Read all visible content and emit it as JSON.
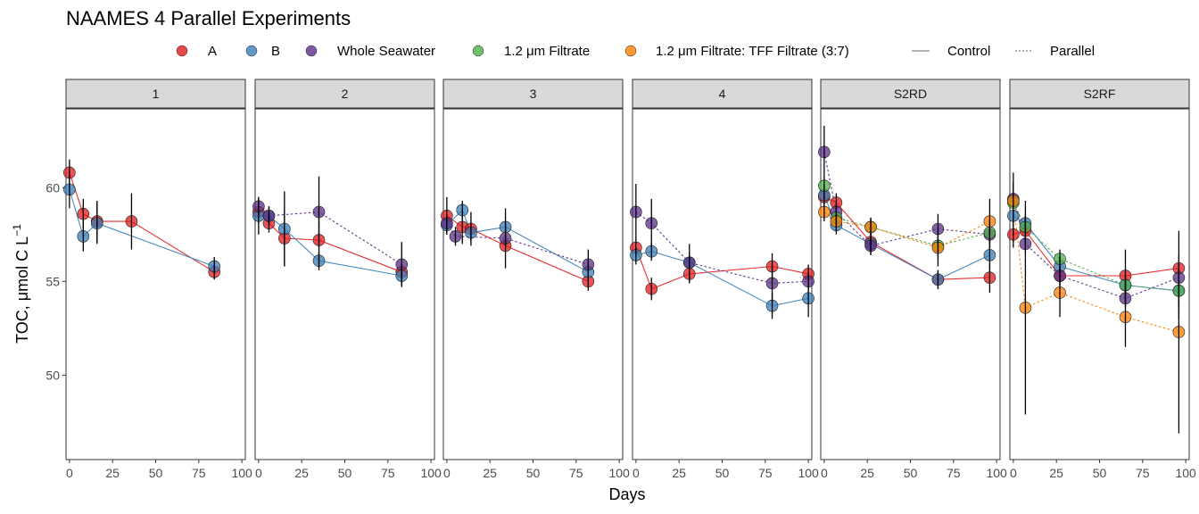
{
  "chart_data": {
    "type": "line",
    "title": "NAAMES 4 Parallel Experiments",
    "xlabel": "Days",
    "ylabel_main": "TOC, μmol C L",
    "ylabel_sup": "−1",
    "xlim": [
      -2,
      102
    ],
    "ylim": [
      45.5,
      64.2
    ],
    "x_ticks": [
      0,
      25,
      50,
      75,
      100
    ],
    "y_ticks": [
      50,
      55,
      60
    ],
    "x_tick_labels": [
      "0",
      "25",
      "50",
      "75",
      "100"
    ],
    "y_tick_labels": [
      "50",
      "55",
      "60"
    ],
    "colors": {
      "A": "#e41a1c",
      "B": "#377eb8",
      "Whole Seawater": "#5c2d8a",
      "1.2 μm Filtrate": "#4daf4a",
      "1.2 μm Filtrate: TFF Filtrate (3:7)": "#ff7f00"
    },
    "legend": {
      "placement": "top",
      "treatments": [
        "A",
        "B",
        "Whole Seawater",
        "1.2 μm Filtrate",
        "1.2 μm Filtrate: TFF Filtrate (3:7)"
      ],
      "linetypes": [
        {
          "label": "Control",
          "dash": false
        },
        {
          "label": "Parallel",
          "dash": true
        }
      ]
    },
    "panels": [
      {
        "label": "1",
        "series": [
          {
            "name": "A",
            "dashed": false,
            "points": [
              [
                0,
                60.8,
                0.7
              ],
              [
                8,
                58.6,
                0.8
              ],
              [
                16,
                58.2,
                1.1
              ],
              [
                36,
                58.2,
                1.5
              ],
              [
                84,
                55.5,
                0.4
              ]
            ]
          },
          {
            "name": "B",
            "dashed": false,
            "points": [
              [
                0,
                59.9,
                1.0
              ],
              [
                8,
                57.4,
                0.8
              ],
              [
                16,
                58.1,
                1.1
              ],
              [
                84,
                55.8,
                0.5
              ]
            ]
          }
        ]
      },
      {
        "label": "2",
        "series": [
          {
            "name": "A",
            "dashed": false,
            "points": [
              [
                0,
                58.7,
                0.6
              ],
              [
                6,
                58.1,
                0.5
              ],
              [
                15,
                57.3,
                1.5
              ],
              [
                35,
                57.2,
                1.5
              ],
              [
                83,
                55.5,
                0.4
              ]
            ]
          },
          {
            "name": "B",
            "dashed": false,
            "points": [
              [
                0,
                58.5,
                1.0
              ],
              [
                6,
                58.5,
                0.5
              ],
              [
                15,
                57.8,
                2.0
              ],
              [
                35,
                56.1,
                0.5
              ],
              [
                83,
                55.3,
                0.6
              ]
            ]
          },
          {
            "name": "Whole Seawater",
            "dashed": true,
            "points": [
              [
                0,
                59.0,
                0.5
              ],
              [
                6,
                58.5,
                0.5
              ],
              [
                35,
                58.7,
                1.9
              ],
              [
                83,
                55.9,
                1.2
              ]
            ]
          }
        ]
      },
      {
        "label": "3",
        "series": [
          {
            "name": "A",
            "dashed": false,
            "points": [
              [
                0,
                58.5,
                1.0
              ],
              [
                9,
                57.9,
                0.9
              ],
              [
                14,
                57.8,
                0.9
              ],
              [
                34,
                56.9,
                1.2
              ],
              [
                82,
                55.0,
                0.5
              ]
            ]
          },
          {
            "name": "B",
            "dashed": false,
            "points": [
              [
                0,
                58.0,
                0.5
              ],
              [
                9,
                58.8,
                0.5
              ],
              [
                14,
                57.6,
                0.5
              ],
              [
                34,
                57.9,
                1.0
              ],
              [
                82,
                55.5,
                0.5
              ]
            ]
          },
          {
            "name": "Whole Seawater",
            "dashed": true,
            "points": [
              [
                0,
                58.1,
                0.5
              ],
              [
                5,
                57.4,
                0.5
              ],
              [
                34,
                57.3,
                0.5
              ],
              [
                82,
                55.9,
                0.8
              ]
            ]
          }
        ]
      },
      {
        "label": "4",
        "series": [
          {
            "name": "A",
            "dashed": false,
            "points": [
              [
                0,
                56.8,
                0.5
              ],
              [
                9,
                54.6,
                0.6
              ],
              [
                31,
                55.4,
                0.5
              ],
              [
                79,
                55.8,
                0.7
              ],
              [
                100,
                55.4,
                0.5
              ]
            ]
          },
          {
            "name": "B",
            "dashed": false,
            "points": [
              [
                0,
                56.4,
                0.5
              ],
              [
                9,
                56.6,
                0.5
              ],
              [
                31,
                56.0,
                0.5
              ],
              [
                79,
                53.7,
                0.7
              ],
              [
                100,
                54.1,
                1.0
              ]
            ]
          },
          {
            "name": "Whole Seawater",
            "dashed": true,
            "points": [
              [
                0,
                58.7,
                1.5
              ],
              [
                9,
                58.1,
                1.3
              ],
              [
                31,
                56.0,
                1.0
              ],
              [
                79,
                54.9,
                1.0
              ],
              [
                100,
                55.0,
                0.5
              ]
            ]
          }
        ]
      },
      {
        "label": "S2RD",
        "series": [
          {
            "name": "A",
            "dashed": false,
            "points": [
              [
                0,
                59.5,
                0.5
              ],
              [
                7,
                59.2,
                0.5
              ],
              [
                27,
                57.1,
                0.5
              ],
              [
                66,
                55.1,
                0.5
              ],
              [
                96,
                55.2,
                0.8
              ]
            ]
          },
          {
            "name": "B",
            "dashed": false,
            "points": [
              [
                0,
                59.6,
                0.6
              ],
              [
                7,
                58.0,
                0.5
              ],
              [
                27,
                57.0,
                0.5
              ],
              [
                66,
                55.1,
                0.5
              ],
              [
                96,
                56.4,
                0.8
              ]
            ]
          },
          {
            "name": "Whole Seawater",
            "dashed": true,
            "points": [
              [
                0,
                61.9,
                1.4
              ],
              [
                7,
                58.7,
                0.5
              ],
              [
                27,
                56.9,
                0.5
              ],
              [
                66,
                57.8,
                0.8
              ],
              [
                96,
                57.5,
                0.8
              ]
            ]
          },
          {
            "name": "1.2 μm Filtrate",
            "dashed": true,
            "points": [
              [
                0,
                60.1,
                0.5
              ],
              [
                7,
                58.4,
                0.5
              ],
              [
                27,
                57.9,
                0.5
              ],
              [
                66,
                56.9,
                0.7
              ],
              [
                96,
                57.6,
                0.5
              ]
            ]
          },
          {
            "name": "1.2 μm Filtrate: TFF Filtrate (3:7)",
            "dashed": true,
            "points": [
              [
                0,
                58.7,
                0.5
              ],
              [
                7,
                58.2,
                0.5
              ],
              [
                27,
                57.9,
                0.5
              ],
              [
                66,
                56.8,
                1.0
              ],
              [
                96,
                58.2,
                1.2
              ]
            ]
          }
        ]
      },
      {
        "label": "S2RF",
        "series": [
          {
            "name": "A",
            "dashed": false,
            "points": [
              [
                0,
                57.5,
                0.7
              ],
              [
                7,
                57.7,
                0.7
              ],
              [
                27,
                55.3,
                0.5
              ],
              [
                65,
                55.3,
                1.4
              ],
              [
                96,
                55.7,
                0.7
              ]
            ]
          },
          {
            "name": "B",
            "dashed": false,
            "points": [
              [
                0,
                58.5,
                1.0
              ],
              [
                7,
                58.1,
                0.5
              ],
              [
                27,
                55.8,
                0.5
              ],
              [
                65,
                54.8,
                0.5
              ],
              [
                96,
                54.5,
                0.8
              ]
            ]
          },
          {
            "name": "Whole Seawater",
            "dashed": true,
            "points": [
              [
                0,
                59.4,
                1.4
              ],
              [
                7,
                57.0,
                0.5
              ],
              [
                27,
                55.3,
                0.5
              ],
              [
                65,
                54.1,
                0.5
              ],
              [
                96,
                55.2,
                0.5
              ]
            ]
          },
          {
            "name": "1.2 μm Filtrate",
            "dashed": true,
            "points": [
              [
                0,
                59.2,
                1.0
              ],
              [
                7,
                57.9,
                0.5
              ],
              [
                27,
                56.2,
                0.5
              ],
              [
                65,
                54.8,
                0.5
              ],
              [
                96,
                54.5,
                1.5
              ]
            ]
          },
          {
            "name": "1.2 μm Filtrate: TFF Filtrate (3:7)",
            "dashed": true,
            "points": [
              [
                0,
                59.3,
                1.0
              ],
              [
                7,
                53.6,
                5.7
              ],
              [
                27,
                54.4,
                1.3
              ],
              [
                65,
                53.1,
                1.6
              ],
              [
                96,
                52.3,
                5.4
              ]
            ]
          }
        ]
      }
    ]
  }
}
